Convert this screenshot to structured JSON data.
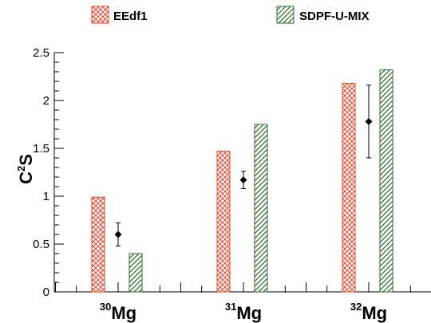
{
  "chart_data": {
    "type": "bar",
    "categories": [
      {
        "superscript": "30",
        "label": "Mg"
      },
      {
        "superscript": "31",
        "label": "Mg"
      },
      {
        "superscript": "32",
        "label": "Mg"
      }
    ],
    "series": [
      {
        "name": "EEdf1",
        "values": [
          0.99,
          1.47,
          2.18
        ],
        "color": "#e8452a",
        "pattern": "crosshatch"
      },
      {
        "name": "SDPF-U-MIX",
        "values": [
          0.4,
          1.75,
          2.32
        ],
        "color": "#2e6b2e",
        "pattern": "diagonal"
      }
    ],
    "experiment": {
      "values": [
        0.6,
        1.17,
        1.78
      ],
      "errors": [
        0.12,
        0.09,
        0.38
      ],
      "color": "#000000"
    },
    "ylabel": {
      "base": "C",
      "sup": "2",
      "tail": "S"
    },
    "ylim": [
      0,
      2.5
    ],
    "yticks": [
      "0",
      "0.5",
      "1",
      "1.5",
      "2",
      "2.5"
    ],
    "grid": false,
    "legend_position": "top"
  }
}
